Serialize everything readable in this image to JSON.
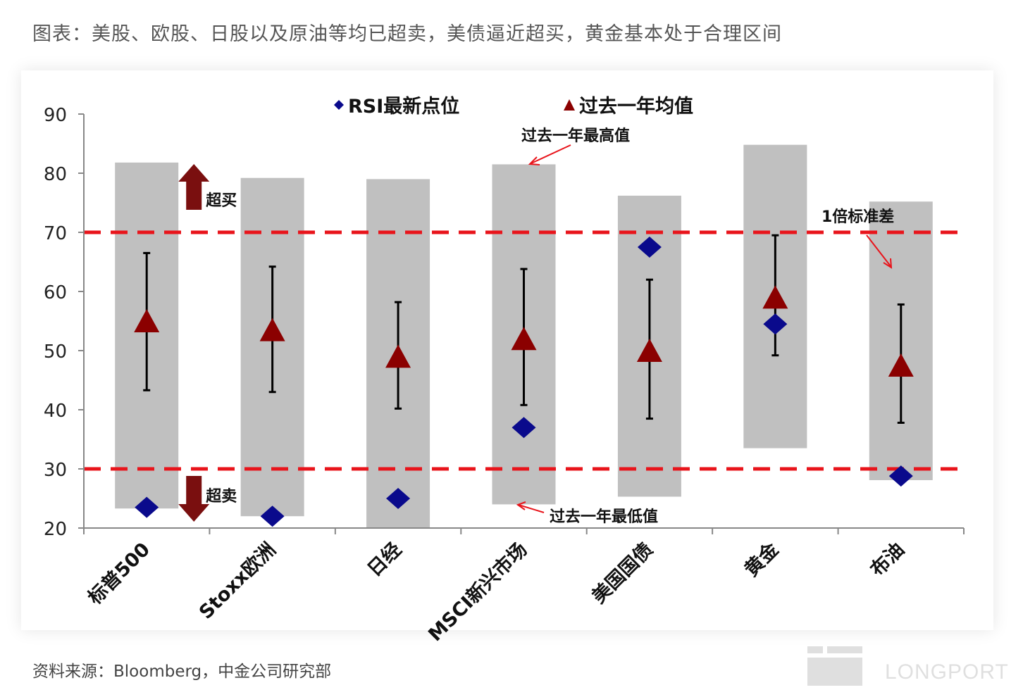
{
  "caption": "图表：美股、欧股、日股以及原油等均已超卖，美债逼近超买，黄金基本处于合理区间",
  "source": "资料来源：Bloomberg，中金公司研究部",
  "watermark": "LONGPORT",
  "chart_data": {
    "type": "range-scatter",
    "ylim": [
      20,
      90
    ],
    "yticks": [
      20,
      30,
      40,
      50,
      60,
      70,
      80,
      90
    ],
    "categories": [
      "标普500",
      "Stoxx欧洲",
      "日经",
      "MSCI新兴市场",
      "美国国债",
      "黄金",
      "布油"
    ],
    "series": [
      {
        "name": "RSI最新点位",
        "values": [
          23.5,
          22.0,
          25.0,
          37.0,
          67.5,
          54.5,
          28.8
        ]
      },
      {
        "name": "过去一年均值",
        "values": [
          55.0,
          53.5,
          49.0,
          52.0,
          50.0,
          59.0,
          47.5
        ]
      }
    ],
    "range_high": [
      81.8,
      79.2,
      79.0,
      81.5,
      76.2,
      84.8,
      75.2
    ],
    "range_low": [
      23.3,
      22.0,
      20.0,
      24.0,
      25.3,
      33.5,
      28.1
    ],
    "std_high": [
      66.5,
      64.2,
      58.2,
      63.8,
      62.0,
      69.5,
      57.8
    ],
    "std_low": [
      43.3,
      43.0,
      40.2,
      40.8,
      38.5,
      49.2,
      37.8
    ],
    "reference_lines": [
      70,
      30
    ],
    "annotations": {
      "overbought": "超买",
      "oversold": "超卖",
      "year_high": "过去一年最高值",
      "year_low": "过去一年最低值",
      "std_label": "1倍标准差"
    },
    "colors": {
      "range_bar": "#c0c0c0",
      "rsi_marker": "#0a0a8c",
      "mean_marker": "#8b0000",
      "reference_line": "#e8141b",
      "arrow": "#7a0f0f",
      "annotation_arrow": "#e8141b"
    },
    "grid": false,
    "legend": "top-center"
  }
}
